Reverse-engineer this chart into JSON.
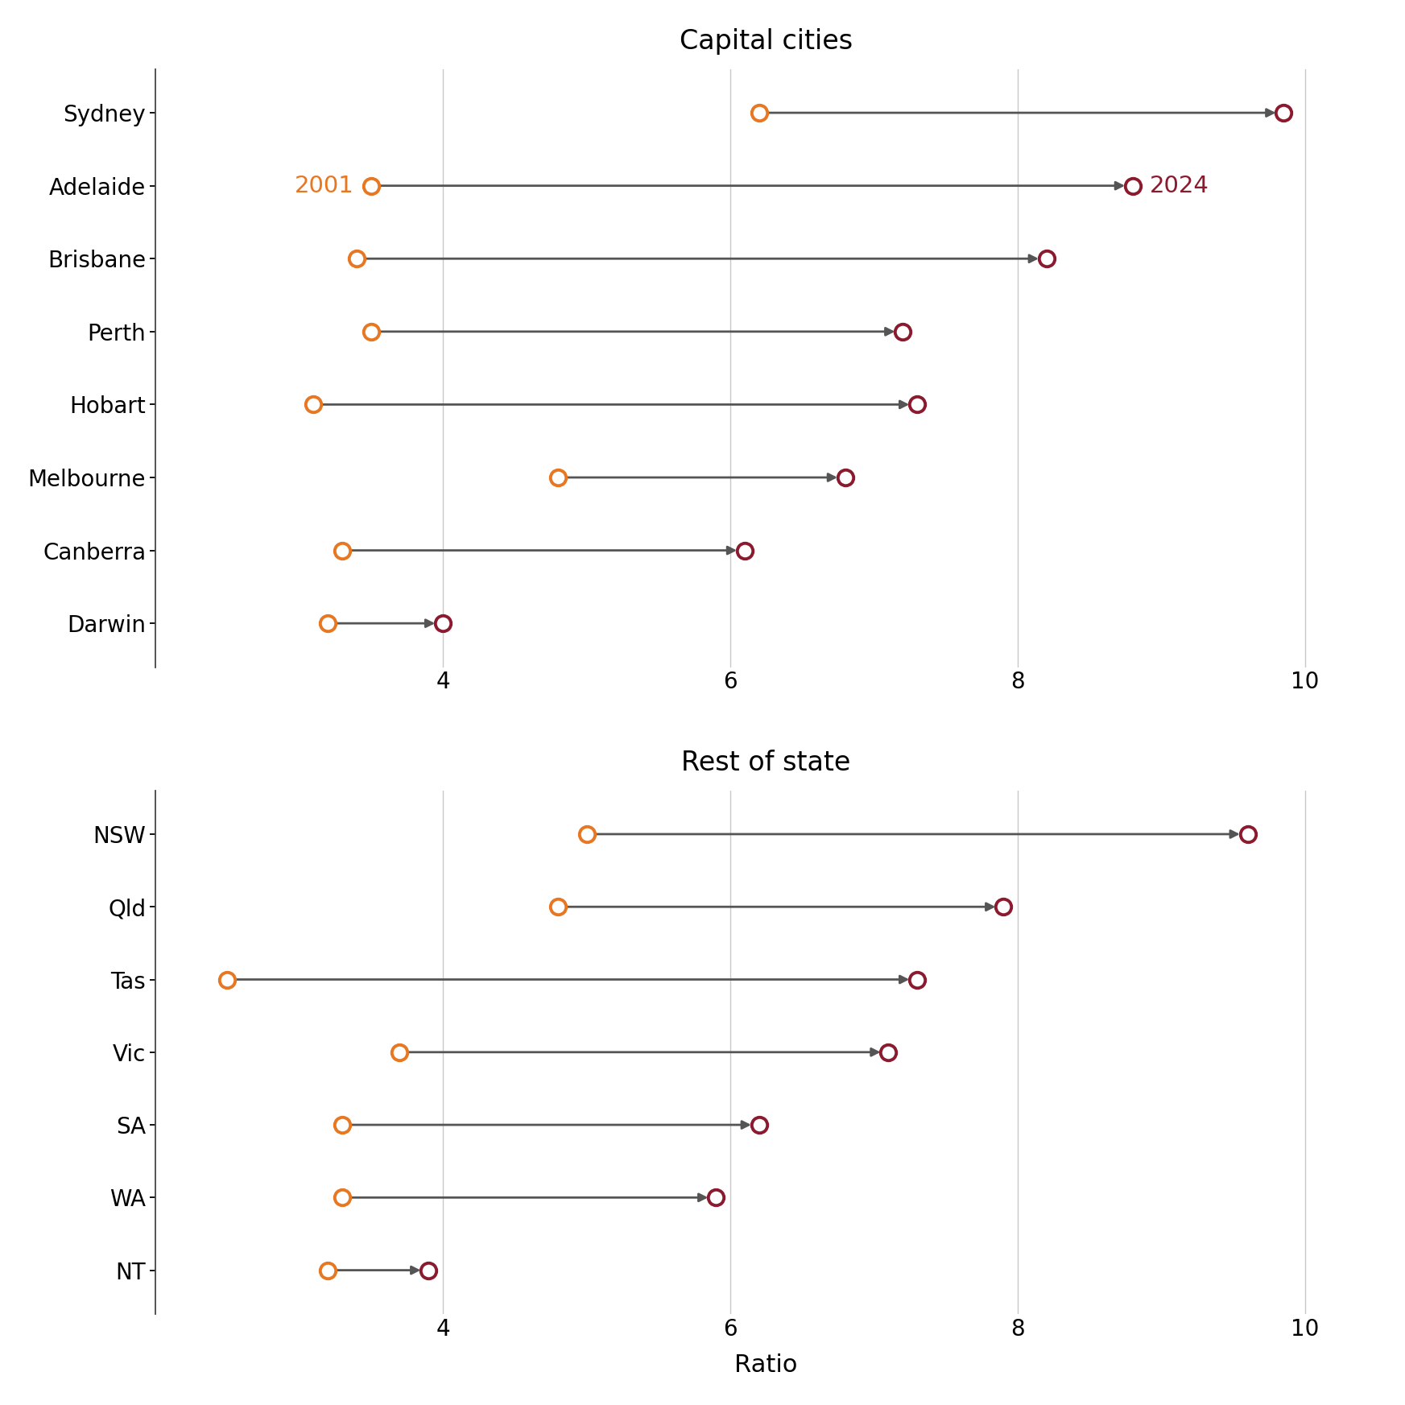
{
  "capital_cities": {
    "labels": [
      "Sydney",
      "Adelaide",
      "Brisbane",
      "Perth",
      "Hobart",
      "Melbourne",
      "Canberra",
      "Darwin"
    ],
    "start": [
      6.2,
      3.5,
      3.4,
      3.5,
      3.1,
      4.8,
      3.3,
      3.2
    ],
    "end": [
      9.85,
      8.8,
      8.2,
      7.2,
      7.3,
      6.8,
      6.1,
      4.0
    ]
  },
  "rest_of_state": {
    "labels": [
      "NSW",
      "Qld",
      "Tas",
      "Vic",
      "SA",
      "WA",
      "NT"
    ],
    "start": [
      5.0,
      4.8,
      2.5,
      3.7,
      3.3,
      3.3,
      3.2
    ],
    "end": [
      9.6,
      7.9,
      7.3,
      7.1,
      6.2,
      5.9,
      3.9
    ]
  },
  "color_start": "#E87722",
  "color_end": "#8B1A2E",
  "arrow_color": "#555555",
  "xlim": [
    2.0,
    10.5
  ],
  "xticks": [
    4,
    6,
    8,
    10
  ],
  "xlabel": "Ratio",
  "title_capital": "Capital cities",
  "title_rest": "Rest of state",
  "annotation_2001_color": "#E87722",
  "annotation_2024_color": "#8B1A2E",
  "grid_color": "#C8C8C8",
  "background_color": "#FFFFFF",
  "label_fontsize": 20,
  "tick_fontsize": 20,
  "title_fontsize": 24,
  "annot_fontsize": 21,
  "xlabel_fontsize": 22,
  "markersize": 14,
  "marker_lw": 2.8,
  "arrow_lw": 2.0,
  "arrow_mutation_scale": 16
}
